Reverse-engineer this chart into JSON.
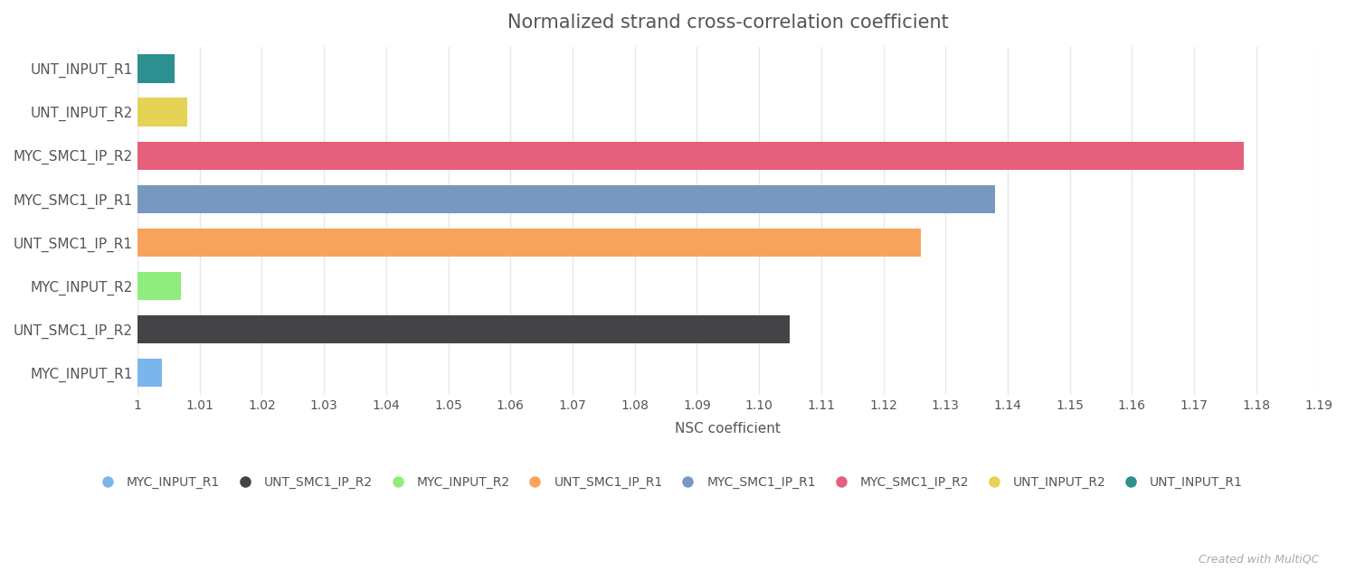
{
  "title": "Normalized strand cross-correlation coefficient",
  "xlabel": "NSC coefficient",
  "categories": [
    "MYC_INPUT_R1",
    "UNT_SMC1_IP_R2",
    "MYC_INPUT_R2",
    "UNT_SMC1_IP_R1",
    "MYC_SMC1_IP_R1",
    "MYC_SMC1_IP_R2",
    "UNT_INPUT_R2",
    "UNT_INPUT_R1"
  ],
  "values": [
    1.004,
    1.105,
    1.007,
    1.126,
    1.138,
    1.178,
    1.008,
    1.006
  ],
  "colors": [
    "#7cb5ec",
    "#434348",
    "#90ed7d",
    "#f7a35c",
    "#7798bf",
    "#e4607c",
    "#e4d354",
    "#2b908f"
  ],
  "xlim_min": 1.0,
  "xlim_max": 1.19,
  "xticks": [
    1.0,
    1.01,
    1.02,
    1.03,
    1.04,
    1.05,
    1.06,
    1.07,
    1.08,
    1.09,
    1.1,
    1.11,
    1.12,
    1.13,
    1.14,
    1.15,
    1.16,
    1.17,
    1.18,
    1.19
  ],
  "background_color": "#ffffff",
  "grid_color": "#e6e6e6",
  "title_color": "#555555",
  "label_color": "#555555",
  "tick_color": "#aaaaaa",
  "watermark": "Created with MultiQC",
  "legend_order": [
    "MYC_INPUT_R1",
    "UNT_SMC1_IP_R2",
    "MYC_INPUT_R2",
    "UNT_SMC1_IP_R1",
    "MYC_SMC1_IP_R1",
    "MYC_SMC1_IP_R2",
    "UNT_INPUT_R2",
    "UNT_INPUT_R1"
  ]
}
